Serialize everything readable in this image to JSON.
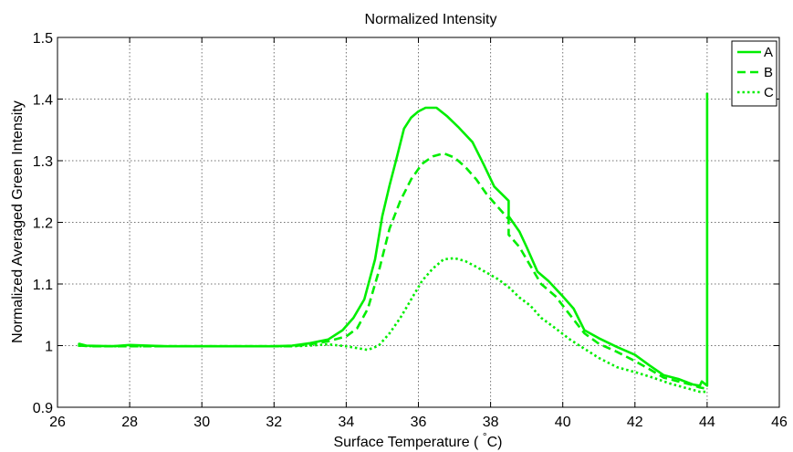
{
  "chart_data": {
    "type": "line",
    "title": "Normalized Intensity",
    "xlabel": "Surface Temperature ( °C)",
    "xlabel_parts": {
      "before": "Surface Temperature ( ",
      "degree": "°",
      "after": "C)"
    },
    "ylabel": "Normalized Averaged Green Intensity",
    "xlim": [
      26,
      46
    ],
    "ylim": [
      0.9,
      1.5
    ],
    "xticks": [
      "26",
      "28",
      "30",
      "32",
      "34",
      "36",
      "38",
      "40",
      "42",
      "44",
      "46"
    ],
    "yticks": [
      "0.9",
      "1",
      "1.1",
      "1.2",
      "1.3",
      "1.4",
      "1.5"
    ],
    "grid": true,
    "legend_position": "top-right",
    "line_color": "#00ee00",
    "series": [
      {
        "name": "A",
        "style": "solid",
        "x": [
          26.6,
          26.6,
          26.8,
          27.5,
          28,
          29,
          30,
          31,
          32,
          32.5,
          33,
          33.5,
          33.9,
          34.2,
          34.5,
          34.8,
          35.0,
          35.2,
          35.4,
          35.6,
          35.8,
          36.0,
          36.2,
          36.5,
          36.8,
          37.1,
          37.5,
          37.8,
          38.1,
          38.5,
          38.5,
          38.8,
          39.0,
          39.3,
          39.6,
          40.0,
          40.3,
          40.6,
          41.0,
          41.5,
          42.0,
          42.4,
          42.8,
          43.2,
          43.6,
          43.8,
          43.85,
          44.0,
          44.0,
          44.0
        ],
        "y": [
          0.998,
          1.003,
          1.0,
          0.999,
          1.001,
          0.999,
          0.999,
          0.999,
          0.999,
          1.0,
          1.004,
          1.01,
          1.025,
          1.045,
          1.075,
          1.14,
          1.21,
          1.26,
          1.305,
          1.352,
          1.37,
          1.38,
          1.386,
          1.386,
          1.372,
          1.355,
          1.33,
          1.295,
          1.258,
          1.235,
          1.21,
          1.185,
          1.16,
          1.12,
          1.105,
          1.08,
          1.06,
          1.025,
          1.012,
          0.998,
          0.985,
          0.968,
          0.952,
          0.946,
          0.937,
          0.935,
          0.942,
          0.935,
          1.2,
          1.41
        ]
      },
      {
        "name": "B",
        "style": "dashed",
        "x": [
          26.6,
          27,
          28,
          29,
          30,
          31,
          32,
          32.5,
          33,
          33.5,
          34,
          34.3,
          34.6,
          34.9,
          35.2,
          35.5,
          35.8,
          36.1,
          36.4,
          36.7,
          37.0,
          37.3,
          37.6,
          37.9,
          38.2,
          38.5,
          38.5,
          38.8,
          39.1,
          39.4,
          39.8,
          40.2,
          40.6,
          41.0,
          41.5,
          42.0,
          42.4,
          42.8,
          43.2,
          43.6,
          43.8,
          44.0
        ],
        "y": [
          1.0,
          0.999,
          0.999,
          0.999,
          0.999,
          0.999,
          0.999,
          0.999,
          1.002,
          1.007,
          1.015,
          1.028,
          1.06,
          1.12,
          1.19,
          1.235,
          1.27,
          1.295,
          1.307,
          1.312,
          1.305,
          1.29,
          1.27,
          1.245,
          1.225,
          1.205,
          1.18,
          1.16,
          1.13,
          1.1,
          1.08,
          1.05,
          1.02,
          1.003,
          0.99,
          0.975,
          0.962,
          0.948,
          0.942,
          0.936,
          0.932,
          0.93
        ]
      },
      {
        "name": "C",
        "style": "dotted",
        "x": [
          26.6,
          27,
          28,
          29,
          30,
          31,
          32,
          32.5,
          33,
          33.5,
          34.0,
          34.3,
          34.6,
          34.9,
          35.2,
          35.5,
          35.8,
          36.1,
          36.4,
          36.7,
          37.0,
          37.3,
          37.6,
          37.9,
          38.2,
          38.5,
          38.8,
          39.1,
          39.4,
          39.8,
          40.2,
          40.6,
          41.0,
          41.5,
          42.0,
          42.5,
          43.0,
          43.5,
          43.8,
          44.0
        ],
        "y": [
          1.0,
          0.999,
          0.999,
          0.999,
          0.999,
          0.999,
          0.999,
          0.999,
          1.0,
          1.002,
          0.999,
          0.996,
          0.993,
          1.0,
          1.02,
          1.045,
          1.075,
          1.105,
          1.125,
          1.14,
          1.142,
          1.137,
          1.128,
          1.118,
          1.108,
          1.095,
          1.078,
          1.065,
          1.045,
          1.028,
          1.01,
          0.995,
          0.98,
          0.965,
          0.957,
          0.948,
          0.938,
          0.93,
          0.925,
          0.925
        ]
      }
    ]
  }
}
